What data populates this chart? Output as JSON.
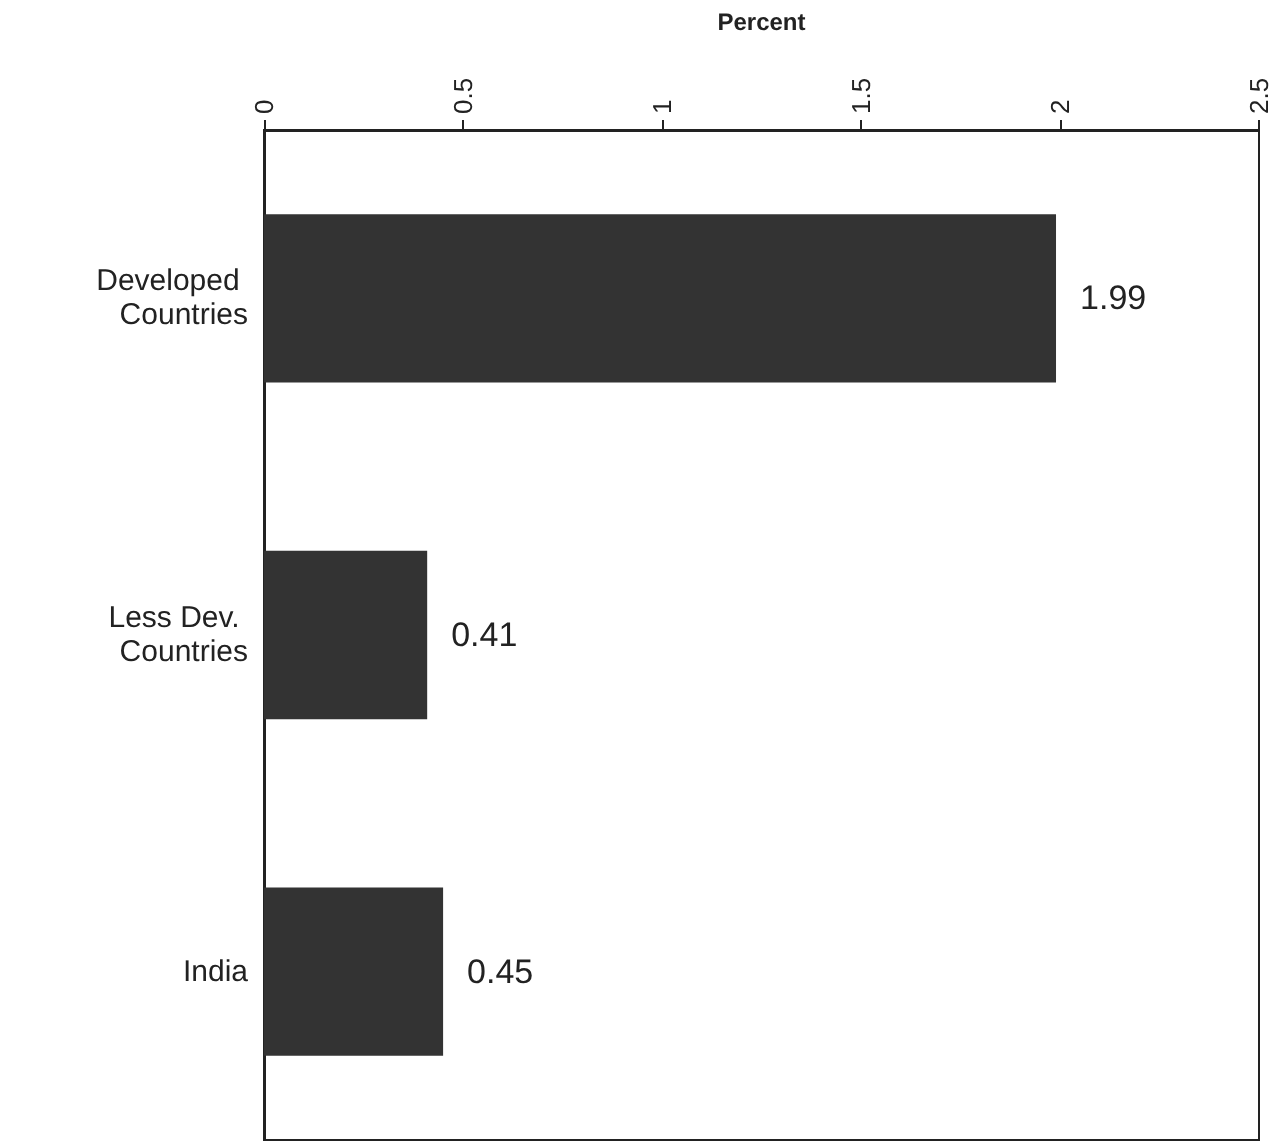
{
  "chart_data": {
    "type": "bar",
    "orientation": "horizontal",
    "xlabel": "Percent",
    "categories": [
      "Developed Countries",
      "Less Dev. Countries",
      "India"
    ],
    "values": [
      1.99,
      0.41,
      0.45
    ],
    "color": "#333333",
    "xlim": [
      0,
      2.5
    ],
    "xticks": [
      0,
      0.5,
      1,
      1.5,
      2,
      2.5
    ],
    "data_labels": true,
    "grid": false
  }
}
